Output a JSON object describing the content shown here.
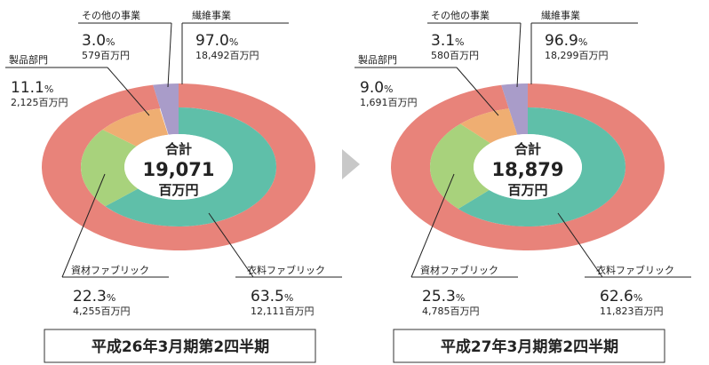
{
  "chart_data": [
    {
      "type": "nested-donut",
      "title": "平成26年3月期第2四半期",
      "center_label": "合計",
      "total_label": "19,071",
      "total_unit": "百万円",
      "outer": {
        "categories": [
          "繊維事業",
          "その他の事業"
        ],
        "values": [
          97.0,
          3.0
        ],
        "value_labels": [
          "97.0%",
          "3.0%"
        ],
        "amount_labels": [
          "18,492百万円",
          "579百万円"
        ],
        "colors": [
          "#e8837a",
          "#a99cc9"
        ]
      },
      "inner": {
        "categories": [
          "衣料ファブリック",
          "資材ファブリック",
          "製品部門"
        ],
        "values": [
          63.5,
          22.3,
          11.1
        ],
        "value_labels": [
          "63.5%",
          "22.3%",
          "11.1%"
        ],
        "amount_labels": [
          "12,111百万円",
          "4,255百万円",
          "2,125百万円"
        ],
        "colors": [
          "#5fbfa9",
          "#a8d27c",
          "#efae72"
        ]
      }
    },
    {
      "type": "nested-donut",
      "title": "平成27年3月期第2四半期",
      "center_label": "合計",
      "total_label": "18,879",
      "total_unit": "百万円",
      "outer": {
        "categories": [
          "繊維事業",
          "その他の事業"
        ],
        "values": [
          96.9,
          3.1
        ],
        "value_labels": [
          "96.9%",
          "3.1%"
        ],
        "amount_labels": [
          "18,299百万円",
          "580百万円"
        ],
        "colors": [
          "#e8837a",
          "#a99cc9"
        ]
      },
      "inner": {
        "categories": [
          "衣料ファブリック",
          "資材ファブリック",
          "製品部門"
        ],
        "values": [
          62.6,
          25.3,
          9.0
        ],
        "value_labels": [
          "62.6%",
          "25.3%",
          "9.0%"
        ],
        "amount_labels": [
          "11,823百万円",
          "4,785百万円",
          "1,691百万円"
        ],
        "colors": [
          "#5fbfa9",
          "#a8d27c",
          "#efae72"
        ]
      }
    }
  ]
}
